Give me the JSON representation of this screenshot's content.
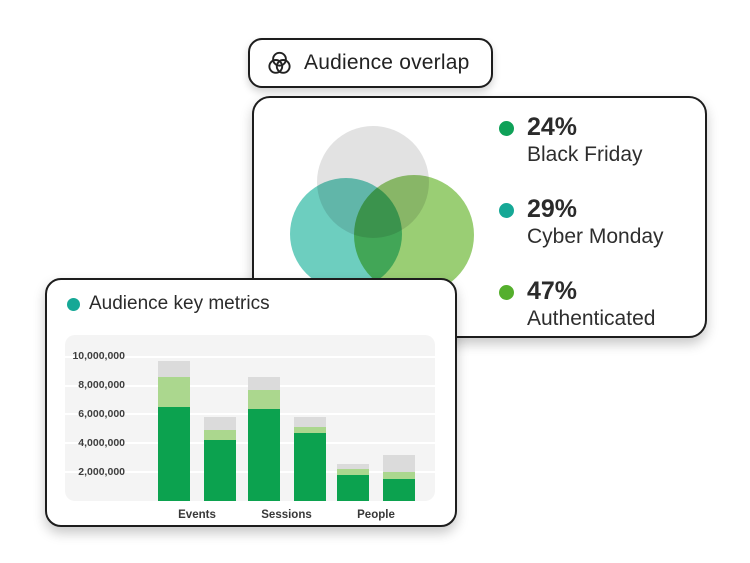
{
  "badge": {
    "icon": "venn-overlap-icon"
  },
  "ink_color": "#1d1d1d",
  "chart_data": [
    {
      "type": "venn",
      "title": "Audience overlap",
      "legend_position": "right",
      "sets": [
        {
          "percent": "24%",
          "label": "Black Friday",
          "dot_color": "#0FA158"
        },
        {
          "percent": "29%",
          "label": "Cyber Monday",
          "dot_color": "#16A896"
        },
        {
          "percent": "47%",
          "label": "Authenticated",
          "dot_color": "#55AF2D"
        }
      ],
      "circle_fills": [
        {
          "position": "top",
          "fill": "rgba(223,223,223,0.92)"
        },
        {
          "position": "left",
          "fill": "rgba(60,190,170,0.75)"
        },
        {
          "position": "right",
          "fill": "rgba(120,190,70,0.75)"
        }
      ]
    },
    {
      "type": "bar",
      "stacked": true,
      "title": "Audience key metrics",
      "title_dot_color": "#16A896",
      "grid": true,
      "ylim": [
        0,
        11500000
      ],
      "yticks": [
        {
          "value": 2000000,
          "label": "2,000,000"
        },
        {
          "value": 4000000,
          "label": "4,000,000"
        },
        {
          "value": 6000000,
          "label": "6,000,000"
        },
        {
          "value": 8000000,
          "label": "8,000,000"
        },
        {
          "value": 10000000,
          "label": "10,000,000"
        }
      ],
      "categories": [
        "Events",
        "Sessions",
        "People"
      ],
      "segment_names": [
        "dark-green",
        "light-green",
        "gray"
      ],
      "segment_colors": [
        "#0CA24F",
        "#ABD78E",
        "#DBDBDB"
      ],
      "groups": [
        {
          "category": "Events",
          "bars": [
            [
              6500000,
              2100000,
              1100000
            ],
            [
              4200000,
              700000,
              900000
            ]
          ]
        },
        {
          "category": "Sessions",
          "bars": [
            [
              6400000,
              1300000,
              900000
            ],
            [
              4700000,
              400000,
              700000
            ]
          ]
        },
        {
          "category": "People",
          "bars": [
            [
              1800000,
              450000,
              350000
            ],
            [
              1500000,
              500000,
              1200000
            ]
          ]
        }
      ]
    }
  ]
}
